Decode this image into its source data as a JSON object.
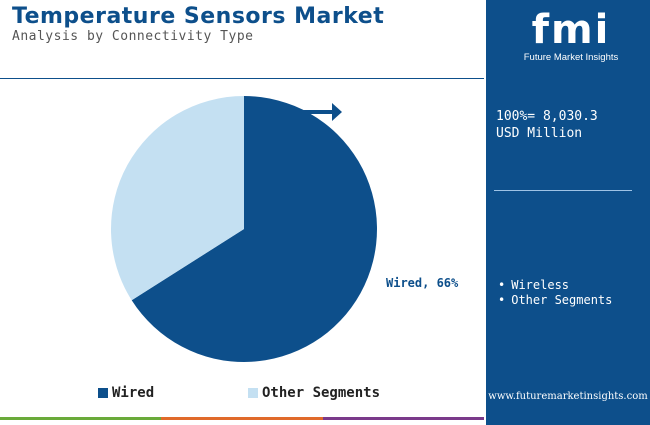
{
  "header": {
    "title": "Temperature Sensors Market",
    "subtitle": "Analysis by Connectivity Type"
  },
  "chart_data": {
    "type": "pie",
    "title": "Temperature Sensors Market",
    "subtitle": "Analysis by Connectivity Type",
    "slices": [
      {
        "label": "Wired",
        "value": 66,
        "color": "#0d4f8b",
        "data_label": "Wired, 66%"
      },
      {
        "label": "Other Segments",
        "value": 34,
        "color": "#c4e0f2"
      }
    ],
    "legend": {
      "placement": "bottom",
      "entries": [
        "Wired",
        "Other Segments"
      ]
    }
  },
  "side_panel": {
    "logo_mark": "fmi",
    "logo_text": "Future Market Insights",
    "total_line1": "100%= 8,030.3",
    "total_line2": "USD Million",
    "list": [
      "Wireless",
      "Other Segments"
    ],
    "website": "www.futuremarketinsights.com"
  },
  "colors": {
    "brand": "#0d4f8b",
    "light": "#c4e0f2",
    "footer_bar": [
      "#6aaa3a",
      "#e06a2a",
      "#7a3a8a"
    ]
  }
}
